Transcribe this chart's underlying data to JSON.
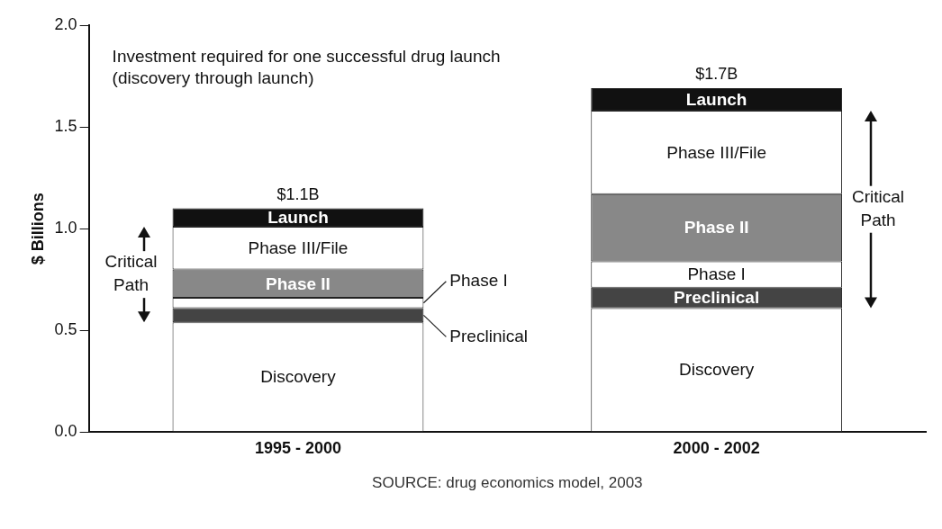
{
  "chart_data": {
    "type": "bar",
    "stacked": true,
    "subtitle": "Investment required for one successful drug launch (discovery through launch)",
    "ylabel": "$ Billions",
    "categories": [
      "1995 - 2000",
      "2000 - 2002"
    ],
    "series": [
      {
        "name": "Discovery",
        "color": "#ffffff",
        "values": [
          0.54,
          0.61
        ]
      },
      {
        "name": "Preclinical",
        "color": "#444444",
        "values": [
          0.07,
          0.1
        ]
      },
      {
        "name": "Phase I",
        "color": "#ffffff",
        "values": [
          0.05,
          0.13
        ]
      },
      {
        "name": "Phase II",
        "color": "#888888",
        "values": [
          0.14,
          0.33
        ]
      },
      {
        "name": "Phase III/File",
        "color": "#ffffff",
        "values": [
          0.21,
          0.41
        ]
      },
      {
        "name": "Launch",
        "color": "#111111",
        "values": [
          0.09,
          0.11
        ]
      }
    ],
    "totals": [
      "$1.1B",
      "$1.7B"
    ],
    "ylim": [
      0,
      2
    ],
    "yticks": [
      {
        "value": 0,
        "label": "0.0"
      },
      0.5,
      {
        "value": 1,
        "label": "1.0"
      },
      1.5,
      {
        "value": 2,
        "label": "2.0"
      }
    ],
    "grid": false,
    "legend": false,
    "annotations": [
      "Critical Path",
      "Critical Path",
      "SOURCE: drug economics model, 2003"
    ]
  }
}
